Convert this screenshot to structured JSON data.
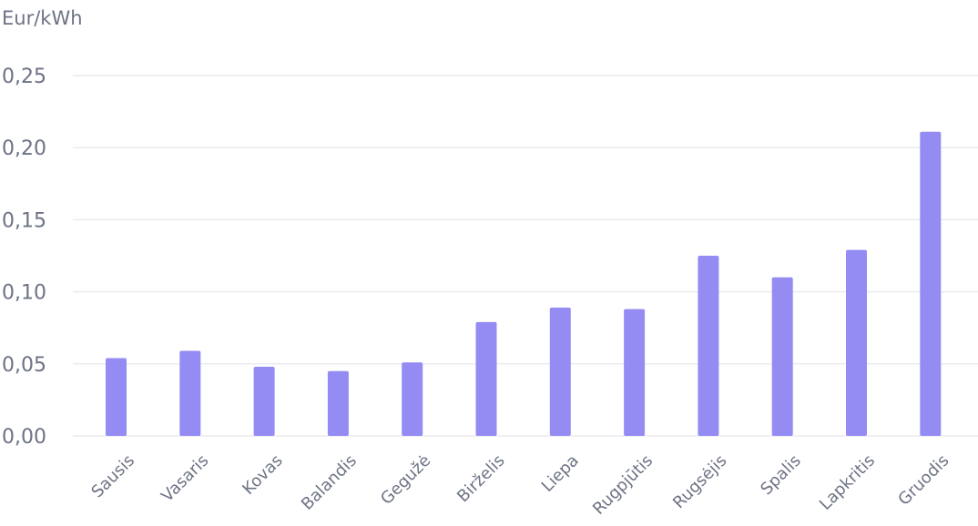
{
  "colors": {
    "bar": "#948cf3",
    "grid": "#ececf0",
    "axis_text": "#6d7385"
  },
  "chart_data": {
    "type": "bar",
    "title": "",
    "xlabel": "",
    "ylabel": "Eur/kWh",
    "categories": [
      "Sausis",
      "Vasaris",
      "Kovas",
      "Balandis",
      "Gegužė",
      "Birželis",
      "Liepa",
      "Rugpjūtis",
      "Rugsėjis",
      "Spalis",
      "Lapkritis",
      "Gruodis"
    ],
    "values": [
      0.054,
      0.059,
      0.048,
      0.045,
      0.051,
      0.079,
      0.089,
      0.088,
      0.125,
      0.11,
      0.129,
      0.211
    ],
    "ylim": [
      0,
      0.25
    ],
    "y_ticks": [
      0,
      0.05,
      0.1,
      0.15,
      0.2,
      0.25
    ],
    "y_tick_labels": [
      "0,00",
      "0,05",
      "0,10",
      "0,15",
      "0,20",
      "0,25"
    ],
    "grid": true,
    "legend": "none"
  }
}
